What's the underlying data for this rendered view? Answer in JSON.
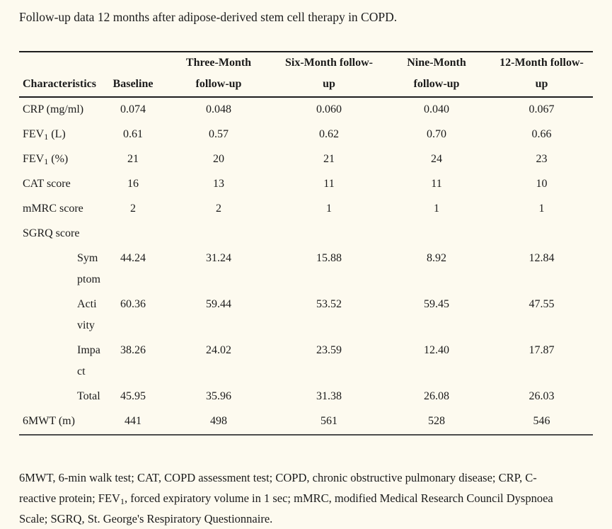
{
  "caption": "Follow-up data 12 months after adipose-derived stem cell therapy in COPD.",
  "table": {
    "columns": [
      {
        "name": "characteristics",
        "lines": [
          "Characteristics"
        ]
      },
      {
        "name": "baseline",
        "lines": [
          "Baseline"
        ]
      },
      {
        "name": "three-month-follow-up",
        "lines": [
          "Three-Month",
          "follow-up"
        ]
      },
      {
        "name": "six-month-follow-up",
        "lines": [
          "Six-Month follow-",
          "up"
        ]
      },
      {
        "name": "nine-month-follow-up",
        "lines": [
          "Nine-Month",
          "follow-up"
        ]
      },
      {
        "name": "twelve-month-follow-up",
        "lines": [
          "12-Month follow-",
          "up"
        ]
      }
    ],
    "rows": [
      {
        "name": "crp",
        "indent": false,
        "label_parts": [
          {
            "t": "CRP (mg/ml)"
          }
        ],
        "values": [
          "0.074",
          "0.048",
          "0.060",
          "0.040",
          "0.067"
        ]
      },
      {
        "name": "fev1-l",
        "indent": false,
        "label_parts": [
          {
            "t": "FEV"
          },
          {
            "t": "1",
            "sub": true
          },
          {
            "t": " (L)"
          }
        ],
        "values": [
          "0.61",
          "0.57",
          "0.62",
          "0.70",
          "0.66"
        ]
      },
      {
        "name": "fev1-pct",
        "indent": false,
        "label_parts": [
          {
            "t": "FEV"
          },
          {
            "t": "1",
            "sub": true
          },
          {
            "t": " (%)"
          }
        ],
        "values": [
          "21",
          "20",
          "21",
          "24",
          "23"
        ]
      },
      {
        "name": "cat-score",
        "indent": false,
        "label_parts": [
          {
            "t": "CAT score"
          }
        ],
        "values": [
          "16",
          "13",
          "11",
          "11",
          "10"
        ]
      },
      {
        "name": "mmrc-score",
        "indent": false,
        "label_parts": [
          {
            "t": "mMRC score"
          }
        ],
        "values": [
          "2",
          "2",
          "1",
          "1",
          "1"
        ]
      },
      {
        "name": "sgrq-score",
        "indent": false,
        "label_parts": [
          {
            "t": "SGRQ score"
          }
        ],
        "values": [
          "",
          "",
          "",
          "",
          ""
        ]
      },
      {
        "name": "sgrq-symptom",
        "indent": true,
        "label_parts": [
          {
            "t": "Sym"
          },
          {
            "br": true
          },
          {
            "t": "ptom"
          }
        ],
        "values": [
          "44.24",
          "31.24",
          "15.88",
          "8.92",
          "12.84"
        ]
      },
      {
        "name": "sgrq-activity",
        "indent": true,
        "label_parts": [
          {
            "t": "Acti"
          },
          {
            "br": true
          },
          {
            "t": "vity"
          }
        ],
        "values": [
          "60.36",
          "59.44",
          "53.52",
          "59.45",
          "47.55"
        ]
      },
      {
        "name": "sgrq-impact",
        "indent": true,
        "label_parts": [
          {
            "t": "Impa"
          },
          {
            "br": true
          },
          {
            "t": "ct"
          }
        ],
        "values": [
          "38.26",
          "24.02",
          "23.59",
          "12.40",
          "17.87"
        ]
      },
      {
        "name": "sgrq-total",
        "indent": true,
        "label_parts": [
          {
            "t": "Total"
          }
        ],
        "values": [
          "45.95",
          "35.96",
          "31.38",
          "26.08",
          "26.03"
        ]
      },
      {
        "name": "6mwt",
        "indent": false,
        "label_parts": [
          {
            "t": "6MWT (m)"
          }
        ],
        "values": [
          "441",
          "498",
          "561",
          "528",
          "546"
        ]
      }
    ]
  },
  "footnote_parts": [
    {
      "t": "6MWT, 6-min walk test; CAT, COPD assessment test; COPD, chronic obstructive pulmonary disease; CRP, C-"
    },
    {
      "br": true
    },
    {
      "t": "reactive protein; FEV"
    },
    {
      "t": "1",
      "sub": true
    },
    {
      "t": ", forced expiratory volume in 1 sec; mMRC, modified Medical Research Council Dyspnoea"
    },
    {
      "br": true
    },
    {
      "t": "Scale; SGRQ, St. George's Respiratory Questionnaire."
    }
  ],
  "colors": {
    "background": "#fdfaef",
    "text": "#1b1b1b",
    "rule": "#1d1d1d",
    "bottom_rule": "#4d4d4d"
  }
}
